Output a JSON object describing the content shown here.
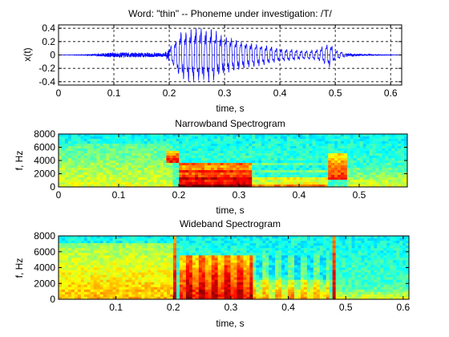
{
  "chart_data": [
    {
      "type": "line",
      "title": "Word: \"thin\" --  Phoneme under investigation: /T/",
      "xlabel": "time, s",
      "ylabel": "x(t)",
      "xlim": [
        0,
        0.62
      ],
      "ylim": [
        -0.45,
        0.45
      ],
      "xticks": [
        "0",
        "0.1",
        "0.2",
        "0.3",
        "0.4",
        "0.5",
        "0.6"
      ],
      "yticks": [
        "-0.4",
        "-0.2",
        "0",
        "0.2",
        "0.4"
      ],
      "grid": true,
      "line_color": "#0000ff",
      "envelope": {
        "time_s": [
          0.0,
          0.05,
          0.1,
          0.19,
          0.2,
          0.22,
          0.25,
          0.28,
          0.3,
          0.33,
          0.37,
          0.4,
          0.45,
          0.47,
          0.49,
          0.5,
          0.52,
          0.55,
          0.62
        ],
        "amplitude": [
          0.0,
          0.005,
          0.04,
          0.03,
          0.1,
          0.38,
          0.45,
          0.42,
          0.32,
          0.24,
          0.17,
          0.11,
          0.07,
          0.1,
          0.2,
          0.08,
          0.03,
          0.01,
          0.0
        ]
      }
    },
    {
      "type": "heatmap",
      "title": "Narrowband Spectrogram",
      "xlabel": "time, s",
      "ylabel": "f, Hz",
      "xlim": [
        0,
        0.58
      ],
      "ylim": [
        0,
        8000
      ],
      "xticks": [
        "0",
        "0.1",
        "0.2",
        "0.3",
        "0.4",
        "0.5"
      ],
      "yticks": [
        "0",
        "2000",
        "4000",
        "6000",
        "8000"
      ],
      "colormap": "jet",
      "energy_regions": [
        {
          "t_start": 0.0,
          "t_end": 0.19,
          "f_low": 0,
          "f_high": 6500,
          "level": 0.6
        },
        {
          "t_start": 0.18,
          "t_end": 0.2,
          "f_low": 3500,
          "f_high": 5500,
          "level": 0.9
        },
        {
          "t_start": 0.2,
          "t_end": 0.32,
          "f_low": 0,
          "f_high": 3500,
          "level": 0.95
        },
        {
          "t_start": 0.32,
          "t_end": 0.45,
          "f_low": 0,
          "f_high": 1500,
          "level": 0.7
        },
        {
          "t_start": 0.45,
          "t_end": 0.48,
          "f_low": 1000,
          "f_high": 5000,
          "level": 0.85
        },
        {
          "t_start": 0.48,
          "t_end": 0.58,
          "f_low": 0,
          "f_high": 3000,
          "level": 0.6
        }
      ]
    },
    {
      "type": "heatmap",
      "title": "Wideband Spectrogram",
      "xlabel": "time, s",
      "ylabel": "f, Hz",
      "xlim": [
        0,
        0.61
      ],
      "ylim": [
        0,
        8000
      ],
      "xticks": [
        "0.1",
        "0.2",
        "0.3",
        "0.4",
        "0.5",
        "0.6"
      ],
      "yticks": [
        "0",
        "2000",
        "4000",
        "6000",
        "8000"
      ],
      "colormap": "jet",
      "energy_regions": [
        {
          "t_start": 0.0,
          "t_end": 0.2,
          "f_low": 0,
          "f_high": 7000,
          "level": 0.7
        },
        {
          "t_start": 0.198,
          "t_end": 0.205,
          "f_low": 0,
          "f_high": 8000,
          "level": 0.95
        },
        {
          "t_start": 0.21,
          "t_end": 0.34,
          "f_low": 0,
          "f_high": 5500,
          "level": 0.92
        },
        {
          "t_start": 0.34,
          "t_end": 0.47,
          "f_low": 0,
          "f_high": 2500,
          "level": 0.7
        },
        {
          "t_start": 0.475,
          "t_end": 0.48,
          "f_low": 0,
          "f_high": 8000,
          "level": 0.95
        },
        {
          "t_start": 0.48,
          "t_end": 0.61,
          "f_low": 0,
          "f_high": 1500,
          "level": 0.6
        }
      ]
    }
  ]
}
